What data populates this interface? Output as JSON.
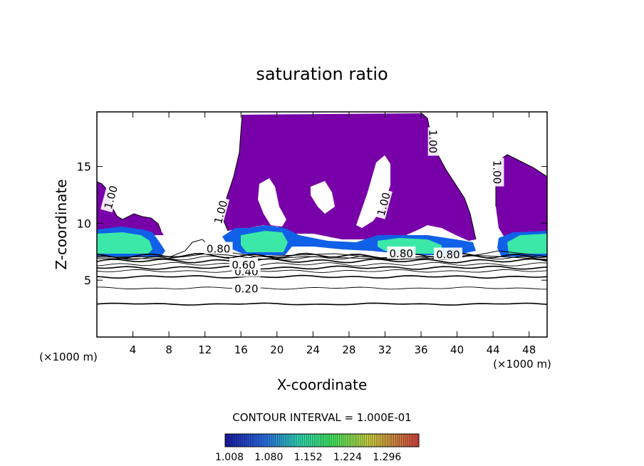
{
  "chart_data": {
    "type": "heatmap",
    "title": "saturation ratio",
    "xlabel": "X-coordinate",
    "ylabel": "Z-coordinate",
    "x_unit_left": "(×1000 m)",
    "x_unit_right": "(×1000 m)",
    "xlim": [
      0,
      50
    ],
    "ylim": [
      0,
      19.8
    ],
    "xticks": [
      "4",
      "8",
      "12",
      "16",
      "20",
      "24",
      "28",
      "32",
      "36",
      "40",
      "44",
      "48"
    ],
    "yticks": [
      "5",
      "10",
      "15"
    ],
    "contour_interval_text": "CONTOUR INTERVAL = 1.000E-01",
    "contour_levels": [
      0.1,
      0.2,
      0.3,
      0.4,
      0.5,
      0.6,
      0.7,
      0.8,
      0.9,
      1.0
    ],
    "contour_heights_km": [
      2.9,
      4.3,
      5.3,
      5.8,
      6.1,
      6.4,
      6.7,
      6.95,
      7.15
    ],
    "contour_labels": [
      {
        "text": "0.20",
        "x": 16.6,
        "z": 4.3
      },
      {
        "text": "0.40",
        "x": 16.6,
        "z": 5.8
      },
      {
        "text": "0.60",
        "x": 16.3,
        "z": 6.4
      },
      {
        "text": "0.80",
        "x": 13.5,
        "z": 7.8
      },
      {
        "text": "0.80",
        "x": 33.8,
        "z": 7.4
      },
      {
        "text": "0.80",
        "x": 39.0,
        "z": 7.3
      },
      {
        "text": "1.00",
        "x": 1.5,
        "z": 12.3
      },
      {
        "text": "1.00",
        "x": 13.7,
        "z": 11.0
      },
      {
        "text": "1.00",
        "x": 31.8,
        "z": 11.7
      },
      {
        "text": "1.00",
        "x": 37.4,
        "z": 17.2
      },
      {
        "text": "1.00",
        "x": 44.5,
        "z": 14.5
      }
    ],
    "colorbar": {
      "ticks": [
        "1.008",
        "1.080",
        "1.152",
        "1.224",
        "1.296"
      ],
      "colors": [
        "#1a1aa0",
        "#2a6ae0",
        "#30d0b0",
        "#40e060",
        "#c8c840",
        "#d04040"
      ]
    },
    "colors": {
      "saturated": "#7800a8",
      "low_layer": "#3ce8a8",
      "layer_edge": "#1060e8"
    }
  }
}
